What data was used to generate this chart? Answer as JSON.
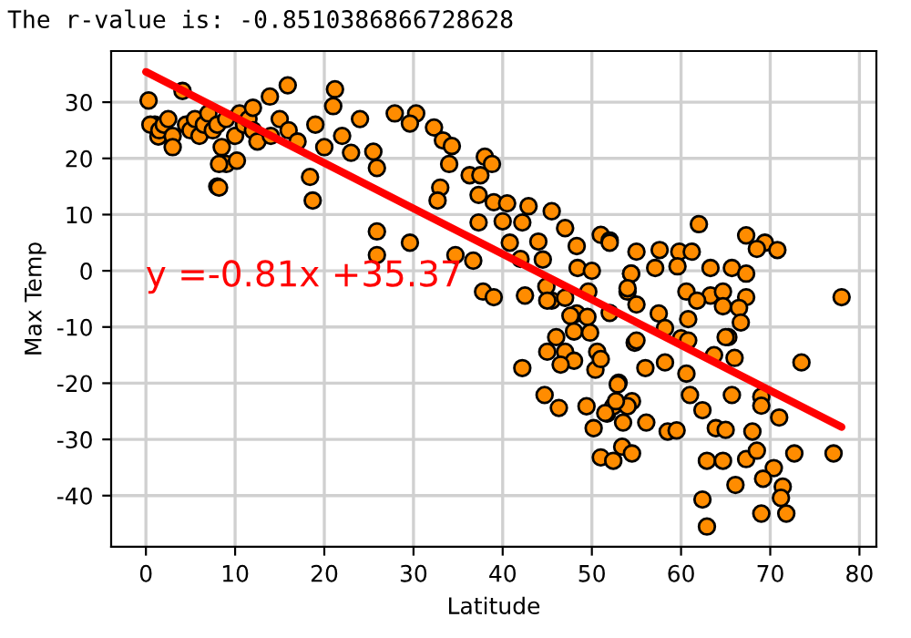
{
  "chart_data": {
    "type": "scatter",
    "xlabel": "Latitude",
    "ylabel": "Max Temp",
    "annotations": [
      "The r-value is: -0.8510386866728628",
      "y =-0.81x +35.37"
    ],
    "xlim": [
      -3.9,
      81.9
    ],
    "ylim": [
      -49.1,
      39.1
    ],
    "xticks": [
      0,
      10,
      20,
      30,
      40,
      50,
      60,
      70,
      80
    ],
    "yticks": [
      -40,
      -30,
      -20,
      -10,
      0,
      10,
      20,
      30
    ],
    "grid": true,
    "series": [
      {
        "color": "#ff8c00",
        "marker": "circle",
        "x": [
          0.3,
          4.1,
          1,
          1.4,
          0.5,
          1.5,
          2,
          2.5,
          3,
          3,
          4.5,
          5,
          5.5,
          6,
          6.5,
          7,
          7.5,
          8,
          8,
          8.5,
          9,
          9,
          10,
          10.5,
          11,
          11.5,
          12,
          12,
          12.5,
          8.2,
          8.2,
          10.2,
          13.9,
          15.9,
          21.2,
          21,
          18.4,
          18.7,
          25.5,
          25.9,
          25.9,
          25.9,
          14,
          15,
          16,
          17,
          19,
          20,
          22,
          23,
          24,
          27.9,
          30.3,
          29.6,
          32.3,
          33.3,
          34.3,
          34,
          38,
          38.8,
          36.3,
          37.5,
          33,
          32.7,
          37.3,
          39,
          40.5,
          42.9,
          45.5,
          37.3,
          40,
          42.2,
          47,
          51,
          52,
          48.3,
          44,
          40.8,
          29.6,
          34.7,
          36.7,
          42,
          44.5,
          48.4,
          50,
          37.8,
          39,
          42.5,
          45.5,
          47,
          44.9,
          49.6,
          54,
          54.4,
          48.3,
          52,
          45,
          47.6,
          49.5,
          48,
          46,
          45,
          47,
          48,
          46.5,
          42.2,
          50.6,
          50.4,
          49.8,
          54.8,
          53,
          44.7,
          46.3,
          49.4,
          51.7,
          54.5,
          53.5,
          50.2,
          51,
          52.4,
          53.4,
          54.5,
          62,
          67.3,
          69.4,
          70.8,
          68.5,
          52,
          55,
          57.6,
          59.8,
          61.2,
          63.3,
          65.7,
          67.3,
          54.4,
          57.1,
          59.6,
          78,
          54,
          60.6,
          63.3,
          64.7,
          67.3,
          61.8,
          64.7,
          66.5,
          66.7,
          60.8,
          57.5,
          55,
          65.3,
          60,
          55,
          58.2,
          73.5,
          65,
          63.7,
          66,
          60.8,
          60.6,
          56,
          58.2,
          52.9,
          52.4,
          54,
          51.5,
          56.1,
          58.5,
          59.5,
          61,
          62.4,
          65.7,
          69,
          69,
          63.9,
          65,
          68,
          71,
          62.9,
          64.7,
          67.3,
          68.5,
          70.4,
          69.2,
          72.7,
          77.1,
          66.1,
          71.4,
          71.2,
          62.4,
          69,
          71.8,
          62.9,
          51,
          52.7
        ],
        "values": [
          30.3,
          32,
          26,
          23.9,
          26,
          25,
          26,
          27,
          24,
          22,
          26,
          25,
          27,
          24,
          26,
          28,
          25,
          26,
          15,
          22,
          27,
          19,
          24,
          28,
          26,
          27,
          25,
          29,
          23,
          19,
          14.8,
          19.6,
          31,
          33,
          32.3,
          29.3,
          16.7,
          12.5,
          21.2,
          18.3,
          7,
          2.8,
          24,
          27,
          25,
          23,
          26,
          22,
          24,
          21,
          27,
          28,
          28,
          26.2,
          25.5,
          23.2,
          22.2,
          19,
          20.3,
          19,
          17,
          17,
          14.8,
          12.5,
          13.5,
          12.2,
          12,
          11.5,
          10.6,
          8.6,
          8.8,
          8.6,
          7.6,
          6.4,
          5.4,
          4.4,
          5.2,
          5,
          5,
          2.8,
          1.8,
          2.1,
          2,
          0.5,
          0,
          -3.7,
          -4.7,
          -4.4,
          -5.3,
          -4.8,
          -2.8,
          -3.7,
          -3.7,
          -0.5,
          -7.6,
          -7.5,
          -5.3,
          -8,
          -8.2,
          -10.8,
          -11.8,
          -14.4,
          -14.4,
          -16,
          -16.7,
          -17.3,
          -14.4,
          -17.6,
          -11,
          -12.8,
          -19.9,
          -22.1,
          -24.4,
          -24.1,
          -25.4,
          -23.2,
          -27,
          -28,
          -33.2,
          -33.8,
          -31.3,
          -32.5,
          8.3,
          6.3,
          5,
          3.7,
          3.9,
          5,
          3.4,
          3.7,
          3.4,
          3.4,
          0.5,
          0.5,
          -0.5,
          -0.5,
          0.5,
          0.8,
          -4.7,
          -3.1,
          -3.7,
          -4.4,
          -3.7,
          -4.7,
          -5.3,
          -6.3,
          -6.6,
          -9.2,
          -8.6,
          -7.6,
          -6,
          -11.8,
          -12,
          -12.4,
          -10.2,
          -16.3,
          -11.8,
          -15,
          -15.5,
          -12.4,
          -18.3,
          -17.3,
          -16.3,
          -20.2,
          -24.1,
          -24.1,
          -25.3,
          -27,
          -28.6,
          -28.4,
          -22.1,
          -24.8,
          -22.1,
          -22.4,
          -24,
          -28,
          -28.3,
          -28.6,
          -26.1,
          -33.8,
          -33.8,
          -33.5,
          -32,
          -35.1,
          -37,
          -32.5,
          -32.5,
          -38.1,
          -38.4,
          -40.4,
          -40.7,
          -43.2,
          -43.2,
          -45.5,
          -15.7,
          -23.2
        ]
      },
      {
        "type": "line",
        "color": "#ff0000",
        "x": [
          0,
          78
        ],
        "values": [
          35.4,
          -27.8
        ]
      }
    ]
  }
}
